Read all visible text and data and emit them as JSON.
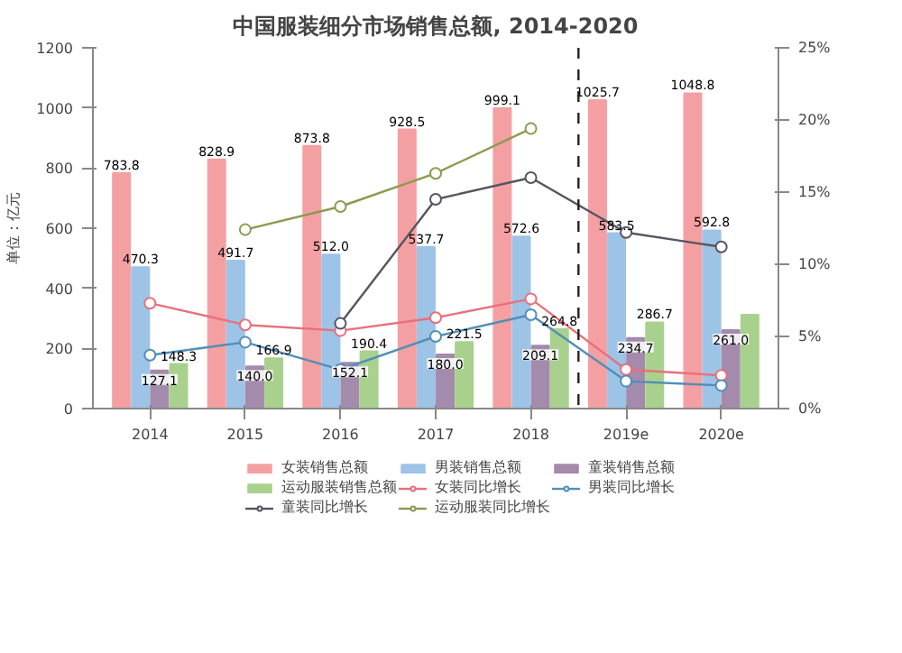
{
  "chart_data": {
    "type": "bar",
    "title": "中国服装细分市场销售总额, 2014-2020",
    "ylabel": "单位：亿元",
    "categories": [
      "2014",
      "2015",
      "2016",
      "2017",
      "2018",
      "2019e",
      "2020e"
    ],
    "series": [
      {
        "name": "女装销售总额",
        "color": "#f4a0a3",
        "values": [
          783.8,
          828.9,
          873.8,
          928.5,
          999.1,
          1025.7,
          1048.8
        ],
        "value_labels": [
          "783.8",
          "828.9",
          "873.8",
          "928.5",
          "999.1",
          "1025.7",
          "1048.8"
        ]
      },
      {
        "name": "男装销售总额",
        "color": "#9dc3e6",
        "values": [
          470.3,
          491.7,
          512.0,
          537.7,
          572.6,
          583.5,
          592.8
        ],
        "value_labels": [
          "470.3",
          "491.7",
          "512.0",
          "537.7",
          "572.6",
          "583.5",
          "592.8"
        ]
      },
      {
        "name": "童装销售总额",
        "color": "#a48aab",
        "values": [
          127.1,
          140.0,
          152.1,
          180.0,
          209.1,
          234.7,
          261.0
        ],
        "value_labels": [
          "127.1",
          "140.0",
          "152.1",
          "180.0",
          "209.1",
          "234.7",
          "261.0"
        ]
      },
      {
        "name": "运动服装销售总额",
        "color": "#a9d18e",
        "values": [
          148.3,
          166.9,
          190.4,
          221.5,
          264.8,
          286.7,
          312.0
        ],
        "value_labels": [
          "148.3",
          "166.9",
          "190.4",
          "221.5",
          "264.8",
          "286.7",
          null
        ]
      },
      {
        "name": "女装同比增长",
        "type": "line",
        "axis": "y2",
        "color": "#e8707a",
        "values": [
          7.3,
          5.8,
          5.4,
          6.3,
          7.6,
          2.7,
          2.3
        ]
      },
      {
        "name": "男装同比增长",
        "type": "line",
        "axis": "y2",
        "color": "#4f8fb8",
        "values": [
          3.7,
          4.6,
          2.7,
          5.0,
          6.5,
          1.9,
          1.6
        ]
      },
      {
        "name": "童装同比增长",
        "type": "line",
        "axis": "y2",
        "color": "#555560",
        "values": [
          null,
          null,
          5.9,
          14.5,
          16.0,
          12.2,
          11.2
        ]
      },
      {
        "name": "运动服装同比增长",
        "type": "line",
        "axis": "y2",
        "color": "#8c9a50",
        "values": [
          null,
          12.4,
          14.0,
          16.3,
          19.4,
          null,
          null
        ]
      }
    ],
    "ylim": [
      0,
      1200
    ],
    "yticks": [
      0,
      200,
      400,
      600,
      800,
      1000,
      1200
    ],
    "y2lim": [
      0,
      25
    ],
    "y2ticks": [
      {
        "value": 0,
        "label": "0%"
      },
      {
        "value": 5,
        "label": "5%"
      },
      {
        "value": 10,
        "label": "10%"
      },
      {
        "value": 15,
        "label": "15%"
      },
      {
        "value": 20,
        "label": "20%"
      },
      {
        "value": 25,
        "label": "25%"
      }
    ],
    "marker": "circle",
    "legend": "bottom",
    "grid": false
  }
}
